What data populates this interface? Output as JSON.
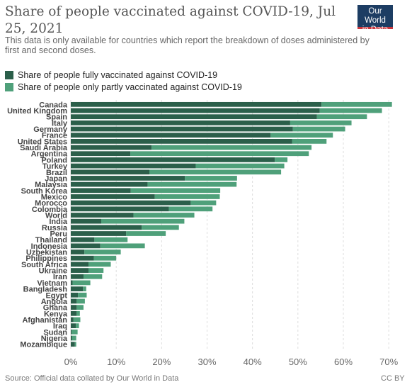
{
  "header": {
    "title": "Share of people vaccinated against COVID-19, Jul 25, 2021",
    "subtitle": "This data is only available for countries which report the breakdown of doses administered by first and second doses.",
    "logo_line1": "Our World",
    "logo_line2": "in Data"
  },
  "colors": {
    "full": "#2b5f4a",
    "partial": "#4fa07a",
    "grid": "#dddddd",
    "logo_bg": "#1d3d63",
    "logo_accent": "#c8363d"
  },
  "chart_data": {
    "type": "bar",
    "orientation": "horizontal",
    "stacked": true,
    "categories": [
      "Canada",
      "United Kingdom",
      "Spain",
      "Italy",
      "Germany",
      "France",
      "United States",
      "Saudi Arabia",
      "Argentina",
      "Poland",
      "Turkey",
      "Brazil",
      "Japan",
      "Malaysia",
      "South Korea",
      "Mexico",
      "Morocco",
      "Colombia",
      "World",
      "India",
      "Russia",
      "Peru",
      "Thailand",
      "Indonesia",
      "Uzbekistan",
      "Philippines",
      "South Africa",
      "Ukraine",
      "Iran",
      "Vietnam",
      "Bangladesh",
      "Egypt",
      "Angola",
      "Ghana",
      "Kenya",
      "Afghanistan",
      "Iraq",
      "Sudan",
      "Nigeria",
      "Mozambique"
    ],
    "series": [
      {
        "name": "Share of people fully vaccinated against COVID-19",
        "values": [
          55.2,
          54.8,
          54.2,
          48.3,
          48.9,
          44.0,
          48.7,
          17.8,
          13.1,
          44.9,
          27.5,
          17.3,
          25.1,
          16.9,
          13.2,
          18.5,
          26.4,
          21.6,
          13.8,
          6.7,
          15.6,
          12.2,
          5.2,
          6.5,
          3.0,
          5.1,
          3.9,
          3.9,
          2.8,
          0.4,
          2.7,
          1.6,
          1.3,
          1.3,
          1.3,
          0.6,
          1.1,
          0.2,
          0.3,
          0.9
        ]
      },
      {
        "name": "Share of people only partly vaccinated against COVID-19",
        "values": [
          15.5,
          13.7,
          11.0,
          13.5,
          11.5,
          13.7,
          7.6,
          35.2,
          39.3,
          2.8,
          19.5,
          29.0,
          11.5,
          19.6,
          19.7,
          14.3,
          5.6,
          9.6,
          13.4,
          18.3,
          8.2,
          8.7,
          7.3,
          9.8,
          8.0,
          4.9,
          4.9,
          3.3,
          4.1,
          3.9,
          0.7,
          1.9,
          1.8,
          1.5,
          0.7,
          1.5,
          0.7,
          1.3,
          0.9,
          0.3
        ]
      }
    ],
    "xlim": [
      0,
      72
    ],
    "xticks": [
      0,
      10,
      20,
      30,
      40,
      50,
      60,
      70
    ],
    "xtick_labels": [
      "0%",
      "10%",
      "20%",
      "30%",
      "40%",
      "50%",
      "60%",
      "70%"
    ],
    "legend_position": "top-left",
    "grid": "vertical-dashed"
  },
  "footer": {
    "source": "Source: Official data collated by Our World in Data",
    "license": "CC BY"
  }
}
